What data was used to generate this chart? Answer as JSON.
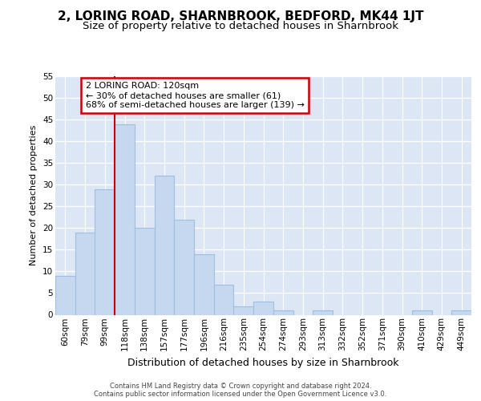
{
  "title": "2, LORING ROAD, SHARNBROOK, BEDFORD, MK44 1JT",
  "subtitle": "Size of property relative to detached houses in Sharnbrook",
  "xlabel": "Distribution of detached houses by size in Sharnbrook",
  "ylabel": "Number of detached properties",
  "categories": [
    "60sqm",
    "79sqm",
    "99sqm",
    "118sqm",
    "138sqm",
    "157sqm",
    "177sqm",
    "196sqm",
    "216sqm",
    "235sqm",
    "254sqm",
    "274sqm",
    "293sqm",
    "313sqm",
    "332sqm",
    "352sqm",
    "371sqm",
    "390sqm",
    "410sqm",
    "429sqm",
    "449sqm"
  ],
  "values": [
    9,
    19,
    29,
    44,
    20,
    32,
    22,
    14,
    7,
    2,
    3,
    1,
    0,
    1,
    0,
    0,
    0,
    0,
    1,
    0,
    1
  ],
  "bar_color": "#c5d8f0",
  "bar_edge_color": "#a0bedd",
  "background_color": "#dce6f5",
  "grid_color": "#ffffff",
  "annotation_text_line1": "2 LORING ROAD: 120sqm",
  "annotation_text_line2": "← 30% of detached houses are smaller (61)",
  "annotation_text_line3": "68% of semi-detached houses are larger (139) →",
  "vline_x_index": 3,
  "vline_color": "#cc0000",
  "annotation_box_color": "#ffffff",
  "annotation_box_edge": "#cc0000",
  "footer_text": "Contains HM Land Registry data © Crown copyright and database right 2024.\nContains public sector information licensed under the Open Government Licence v3.0.",
  "ylim": [
    0,
    55
  ],
  "yticks": [
    0,
    5,
    10,
    15,
    20,
    25,
    30,
    35,
    40,
    45,
    50,
    55
  ],
  "title_fontsize": 11,
  "subtitle_fontsize": 9.5,
  "xlabel_fontsize": 9,
  "ylabel_fontsize": 8,
  "tick_fontsize": 7.5,
  "annotation_fontsize": 8,
  "footer_fontsize": 6
}
